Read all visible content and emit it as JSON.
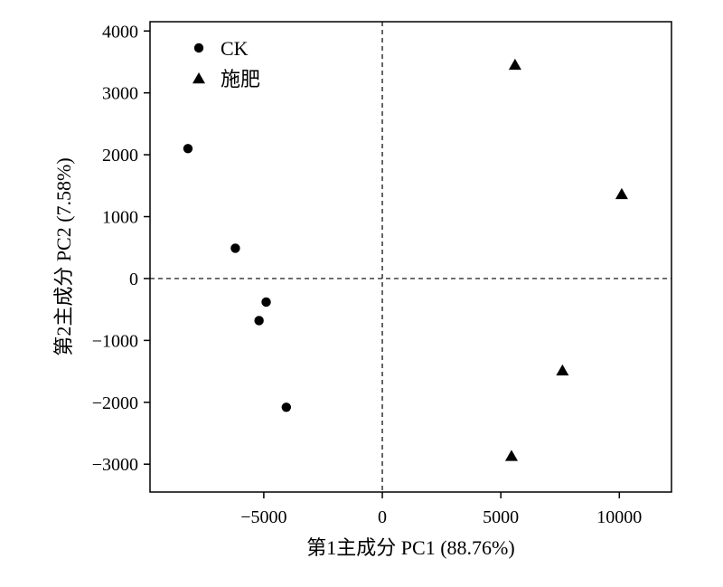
{
  "chart_data": {
    "type": "scatter",
    "xlabel": "第1主成分 PC1 (88.76%)",
    "ylabel": "第2主成分 PC2 (7.58%)",
    "xlim": [
      -9800,
      12200
    ],
    "ylim": [
      -3450,
      4150
    ],
    "xticks": [
      -5000,
      0,
      5000,
      10000
    ],
    "yticks": [
      -3000,
      -2000,
      -1000,
      0,
      1000,
      2000,
      3000,
      4000
    ],
    "reference_lines": {
      "x": 0,
      "y": 0,
      "style": "dashed"
    },
    "legend_position": "top-left",
    "grid": false,
    "series": [
      {
        "name": "CK",
        "marker": "circle",
        "color": "#000000",
        "points": [
          {
            "x": -8200,
            "y": 2100
          },
          {
            "x": -6200,
            "y": 490
          },
          {
            "x": -4900,
            "y": -380
          },
          {
            "x": -5200,
            "y": -680
          },
          {
            "x": -4050,
            "y": -2080
          }
        ]
      },
      {
        "name": "施肥",
        "marker": "triangle",
        "color": "#000000",
        "points": [
          {
            "x": 5600,
            "y": 3450
          },
          {
            "x": 10100,
            "y": 1360
          },
          {
            "x": 7600,
            "y": -1490
          },
          {
            "x": 5450,
            "y": -2870
          }
        ]
      }
    ]
  }
}
